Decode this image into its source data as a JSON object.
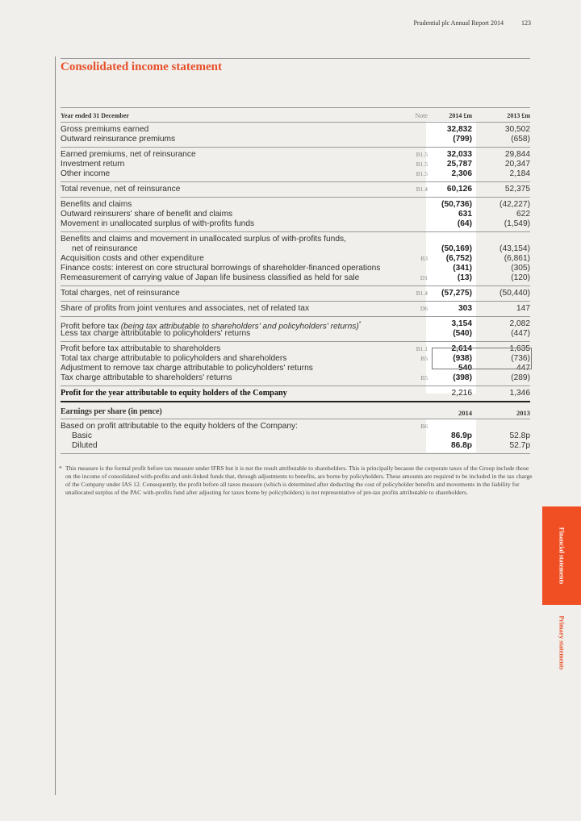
{
  "header": {
    "report": "Prudential plc  Annual Report 2014",
    "page_number": "123"
  },
  "title": "Consolidated income statement",
  "table": {
    "head": {
      "label": "Year ended 31 December",
      "note": "Note",
      "y2014": "2014 £m",
      "y2013": "2013 £m"
    },
    "groups": [
      [
        {
          "label": "Gross premiums earned",
          "note": "",
          "v2014": "32,832",
          "v2013": "30,502"
        },
        {
          "label": "Outward reinsurance premiums",
          "note": "",
          "v2014": "(799)",
          "v2013": "(658)"
        }
      ],
      [
        {
          "label": "Earned premiums, net of reinsurance",
          "note": "B1.5",
          "v2014": "32,033",
          "v2013": "29,844"
        },
        {
          "label": "Investment return",
          "note": "B1.5",
          "v2014": "25,787",
          "v2013": "20,347"
        },
        {
          "label": "Other income",
          "note": "B1.5",
          "v2014": "2,306",
          "v2013": "2,184"
        }
      ],
      [
        {
          "label": "Total revenue, net of reinsurance",
          "note": "B1.4",
          "v2014": "60,126",
          "v2013": "52,375"
        }
      ],
      [
        {
          "label": "Benefits and claims",
          "note": "",
          "v2014": "(50,736)",
          "v2013": "(42,227)"
        },
        {
          "label": "Outward reinsurers' share of benefit and claims",
          "note": "",
          "v2014": "631",
          "v2013": "622"
        },
        {
          "label": "Movement in unallocated surplus of with-profits funds",
          "note": "",
          "v2014": "(64)",
          "v2013": "(1,549)"
        }
      ],
      [
        {
          "label": "Benefits and claims and movement in unallocated surplus of with-profits funds,",
          "note": "",
          "v2014": "",
          "v2013": ""
        },
        {
          "label": "net of reinsurance",
          "indent": true,
          "note": "",
          "v2014": "(50,169)",
          "v2013": "(43,154)"
        },
        {
          "label": "Acquisition costs and other expenditure",
          "note": "B3",
          "v2014": "(6,752)",
          "v2013": "(6,861)"
        },
        {
          "label": "Finance costs: interest on core structural borrowings of shareholder-financed operations",
          "note": "",
          "v2014": "(341)",
          "v2013": "(305)"
        },
        {
          "label": "Remeasurement of carrying value of Japan life business classified as held for sale",
          "note": "D1",
          "v2014": "(13)",
          "v2013": "(120)"
        }
      ],
      [
        {
          "label": "Total charges, net of reinsurance",
          "note": "B1.4",
          "v2014": "(57,275)",
          "v2013": "(50,440)"
        }
      ],
      [
        {
          "label": "Share of profits from joint ventures and associates, net of related tax",
          "note": "D6",
          "v2014": "303",
          "v2013": "147"
        }
      ],
      [
        {
          "label": "Profit before tax ",
          "italic": "(being tax attributable to shareholders' and policyholders' returns)",
          "suffix": "*",
          "note": "",
          "v2014": "3,154",
          "v2013": "2,082"
        },
        {
          "label": "Less tax charge attributable to policyholders' returns",
          "note": "",
          "v2014": "(540)",
          "v2013": "(447)"
        }
      ],
      [
        {
          "label": "Profit before tax attributable to shareholders",
          "note": "B1.1",
          "v2014": "2,614",
          "v2013": "1,635"
        },
        {
          "label": "Total tax charge attributable to policyholders and shareholders",
          "note": "B5",
          "v2014": "(938)",
          "v2013": "(736)"
        },
        {
          "label": "Adjustment to remove tax charge attributable to policyholders' returns",
          "note": "",
          "v2014": "540",
          "v2013": "447"
        },
        {
          "label": "Tax charge attributable to shareholders' returns",
          "note": "B5",
          "v2014": "(398)",
          "v2013": "(289)"
        }
      ],
      [
        {
          "label": "Profit for the year attributable to equity holders of the Company",
          "bold": true,
          "note": "",
          "v2014": "2,216",
          "v2013": "1,346"
        }
      ]
    ]
  },
  "eps": {
    "head": {
      "label": "Earnings per share (in pence)",
      "y2014": "2014",
      "y2013": "2013"
    },
    "rows": [
      {
        "label": "Based on profit attributable to the equity holders of the Company:",
        "note": "B6",
        "v2014": "",
        "v2013": ""
      },
      {
        "label": "Basic",
        "indent": true,
        "note": "",
        "v2014": "86.9p",
        "v2013": "52.8p"
      },
      {
        "label": "Diluted",
        "indent": true,
        "note": "",
        "v2014": "86.8p",
        "v2013": "52.7p"
      }
    ]
  },
  "footnote": {
    "marker": "*",
    "text": "This measure is the formal profit before tax measure under IFRS but it is not the result attributable to shareholders. This is principally because the corporate taxes of the Group include those on the income of consolidated with-profits and unit-linked funds that, through adjustments to benefits, are borne by policyholders. These amounts are required to be included in the tax charge of the Company under IAS 12. Consequently, the profit before all taxes measure (which is determined after deducting the cost of policyholder benefits and movements in the liability for unallocated surplus of the PAC with-profits fund after adjusting for taxes borne by policyholders) is not representative of pre-tax profits attributable to shareholders."
  },
  "side_tabs": {
    "active": "Financial statements",
    "sub": "Primary statements"
  },
  "colors": {
    "accent": "#e8502a",
    "tab": "#f04e23"
  }
}
